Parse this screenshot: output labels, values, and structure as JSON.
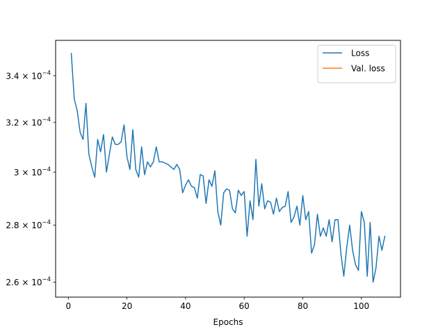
{
  "chart_data": {
    "type": "line",
    "title": "",
    "xlabel": "Epochs",
    "ylabel": "",
    "yscale": "log",
    "xlim": [
      -4.35,
      113.35
    ],
    "ylim": [
      0.000255,
      0.000356
    ],
    "grid": false,
    "legend_position": "top-right",
    "x_ticks": [
      0,
      20,
      40,
      60,
      80,
      100
    ],
    "y_ticks": [
      {
        "value": 0.00026,
        "mantissa": "2.6",
        "base": "10",
        "exp": "−4"
      },
      {
        "value": 0.00028,
        "mantissa": "2.8",
        "base": "10",
        "exp": "−4"
      },
      {
        "value": 0.0003,
        "mantissa": "3",
        "base": "10",
        "exp": "−4"
      },
      {
        "value": 0.00032,
        "mantissa": "3.2",
        "base": "10",
        "exp": "−4"
      },
      {
        "value": 0.00034,
        "mantissa": "3.4",
        "base": "10",
        "exp": "−4"
      }
    ],
    "series": [
      {
        "name": "Loss",
        "color": "#1f77b4",
        "x": [
          1,
          2,
          3,
          4,
          5,
          6,
          7,
          8,
          9,
          10,
          11,
          12,
          13,
          14,
          15,
          16,
          17,
          18,
          19,
          20,
          21,
          22,
          23,
          24,
          25,
          26,
          27,
          28,
          29,
          30,
          31,
          32,
          33,
          34,
          35,
          36,
          37,
          38,
          39,
          40,
          41,
          42,
          43,
          44,
          45,
          46,
          47,
          48,
          49,
          50,
          51,
          52,
          53,
          54,
          55,
          56,
          57,
          58,
          59,
          60,
          61,
          62,
          63,
          64,
          65,
          66,
          67,
          68,
          69,
          70,
          71,
          72,
          73,
          74,
          75,
          76,
          77,
          78,
          79,
          80,
          81,
          82,
          83,
          84,
          85,
          86,
          87,
          88,
          89,
          90,
          91,
          92,
          93,
          94,
          95,
          96,
          97,
          98,
          99,
          100,
          101,
          102,
          103,
          104,
          105,
          106,
          107,
          108
        ],
        "values": [
          0.00035,
          0.00033,
          0.000325,
          0.000316,
          0.000313,
          0.000328,
          0.000307,
          0.000302,
          0.000298,
          0.000313,
          0.000308,
          0.000315,
          0.0003,
          0.000307,
          0.000314,
          0.000311,
          0.000311,
          0.000312,
          0.000319,
          0.000306,
          0.000301,
          0.000317,
          0.000301,
          0.000298,
          0.00031,
          0.000299,
          0.000304,
          0.000302,
          0.000304,
          0.00031,
          0.000304,
          0.000304,
          0.0003035,
          0.000303,
          0.000302,
          0.000301,
          0.000303,
          0.000301,
          0.000292,
          0.000295,
          0.000297,
          0.0002945,
          0.000294,
          0.00029,
          0.000299,
          0.0002985,
          0.000288,
          0.000297,
          0.0002945,
          0.0003005,
          0.000285,
          0.00028,
          0.000292,
          0.0002935,
          0.000293,
          0.000286,
          0.0002845,
          0.000293,
          0.000291,
          0.0002925,
          0.000276,
          0.000289,
          0.000282,
          0.000305,
          0.000287,
          0.0002955,
          0.000286,
          0.000289,
          0.0002885,
          0.000284,
          0.00029,
          0.000285,
          0.0002865,
          0.000287,
          0.0002925,
          0.000281,
          0.000283,
          0.000287,
          0.00028,
          0.000291,
          0.000282,
          0.000285,
          0.00027,
          0.000273,
          0.000284,
          0.000276,
          0.000279,
          0.000276,
          0.000282,
          0.000274,
          0.000282,
          0.000282,
          0.00027,
          0.000262,
          0.000272,
          0.00028,
          0.000271,
          0.000266,
          0.000264,
          0.000285,
          0.000281,
          0.000262,
          0.000281,
          0.00026,
          0.000265,
          0.000276,
          0.000271,
          0.000276
        ]
      },
      {
        "name": "Val. loss",
        "color": "#ff7f0e",
        "x": [],
        "values": []
      }
    ]
  }
}
